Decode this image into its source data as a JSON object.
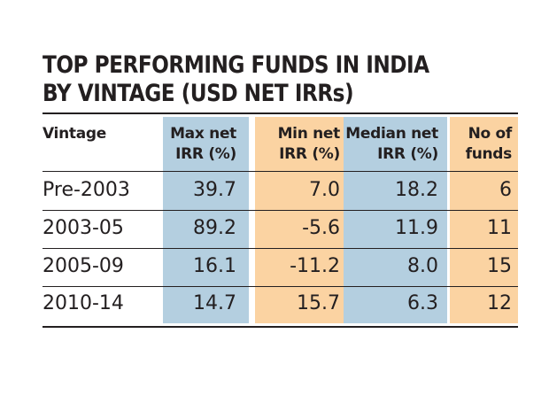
{
  "chart_data": {
    "type": "table",
    "title": "TOP PERFORMING FUNDS IN INDIA BY VINTAGE (USD NET IRRs)",
    "columns": [
      {
        "key": "vintage",
        "label_lines": [
          "Vintage"
        ],
        "color": null
      },
      {
        "key": "max",
        "label_lines": [
          "Max net",
          "IRR (%)"
        ],
        "color": "#b4cfe0"
      },
      {
        "key": "min",
        "label_lines": [
          "Min net",
          "IRR (%)"
        ],
        "color": "#fbd3a2"
      },
      {
        "key": "median",
        "label_lines": [
          "Median net",
          "IRR (%)"
        ],
        "color": "#b4cfe0"
      },
      {
        "key": "funds",
        "label_lines": [
          "No of",
          "funds"
        ],
        "color": "#fbd3a2"
      }
    ],
    "rows": [
      {
        "vintage": "Pre-2003",
        "max": "39.7",
        "min": "7.0",
        "median": "18.2",
        "funds": "6"
      },
      {
        "vintage": "2003-05",
        "max": "89.2",
        "min": "-5.6",
        "median": "11.9",
        "funds": "11"
      },
      {
        "vintage": "2005-09",
        "max": "16.1",
        "min": "-11.2",
        "median": "8.0",
        "funds": "15"
      },
      {
        "vintage": "2010-14",
        "max": "14.7",
        "min": "15.7",
        "median": "6.3",
        "funds": "12"
      }
    ]
  }
}
